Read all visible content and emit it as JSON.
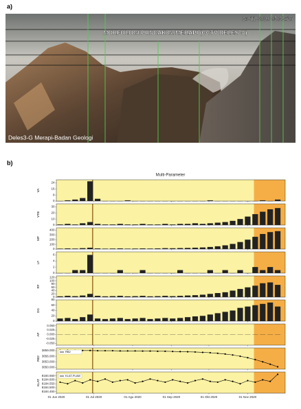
{
  "labels": {
    "a": "a)",
    "b": "b)"
  },
  "photo": {
    "timestamp": "26-11-2020 05:52:16",
    "title": "MORFOLOGI PUNCAK G. MERAPI (CCTV DELES 3 )",
    "caption": "Deles3-G Merapi-Badan Geologi"
  },
  "chart_data": {
    "type": "multi-panel",
    "title": "Multi-Parameter",
    "x": [
      3,
      9,
      15,
      21,
      27,
      33,
      39,
      45,
      51,
      57,
      63,
      69,
      75,
      81,
      87,
      93,
      99,
      105,
      111,
      117,
      123,
      129,
      135,
      141,
      147,
      153,
      159,
      165,
      171,
      177
    ],
    "xlim": [
      0,
      183
    ],
    "xticks": [
      {
        "value": 0,
        "label": "01 Jun 2020"
      },
      {
        "value": 30,
        "label": "01 Jul 2020"
      },
      {
        "value": 61,
        "label": "01 Agu 2020"
      },
      {
        "value": 92,
        "label": "01 Sep 2020"
      },
      {
        "value": 122,
        "label": "01 Okt 2020"
      },
      {
        "value": 153,
        "label": "01 Nov 2020"
      }
    ],
    "background": "#fbf2a4",
    "shade": {
      "from": 158,
      "to": 183,
      "color": "#f5ae45"
    },
    "event_line": {
      "x": 29,
      "color": "#a0762f"
    },
    "panels": [
      {
        "type": "bar",
        "label": "VA",
        "color": "#222222",
        "ylim": [
          0,
          28
        ],
        "yticks": [
          0,
          8,
          16,
          24
        ],
        "values": [
          0,
          1,
          2,
          4,
          26,
          3,
          0,
          0,
          0,
          1,
          0,
          0,
          0,
          0,
          0,
          0,
          0,
          0,
          0,
          0,
          1,
          0,
          0,
          0,
          0,
          0,
          0,
          1,
          0,
          2
        ]
      },
      {
        "type": "bar",
        "label": "VTB",
        "color": "#222222",
        "ylim": [
          0,
          35
        ],
        "yticks": [
          0,
          10,
          20,
          30
        ],
        "values": [
          1,
          2,
          1,
          3,
          5,
          2,
          1,
          1,
          2,
          1,
          1,
          2,
          1,
          1,
          2,
          1,
          2,
          2,
          3,
          2,
          3,
          4,
          5,
          7,
          10,
          14,
          18,
          22,
          26,
          28
        ]
      },
      {
        "type": "bar",
        "label": "MP",
        "color": "#222222",
        "ylim": [
          0,
          450
        ],
        "yticks": [
          0,
          100,
          200,
          300,
          400
        ],
        "values": [
          10,
          15,
          12,
          20,
          30,
          15,
          10,
          12,
          15,
          10,
          12,
          15,
          12,
          15,
          20,
          18,
          22,
          25,
          30,
          35,
          45,
          60,
          80,
          110,
          150,
          200,
          260,
          320,
          360,
          380
        ]
      },
      {
        "type": "bar",
        "label": "LF",
        "color": "#222222",
        "ylim": [
          0,
          7
        ],
        "yticks": [
          0,
          2,
          4,
          6
        ],
        "values": [
          0,
          0,
          1,
          1,
          6,
          0,
          0,
          0,
          1,
          0,
          0,
          1,
          0,
          0,
          0,
          0,
          1,
          0,
          0,
          0,
          1,
          0,
          1,
          0,
          1,
          0,
          2,
          1,
          2,
          1
        ]
      },
      {
        "type": "bar",
        "label": "RF",
        "color": "#222222",
        "ylim": [
          0,
          130
        ],
        "yticks": [
          0,
          20,
          40,
          60,
          80,
          100,
          120
        ],
        "values": [
          5,
          8,
          6,
          10,
          20,
          8,
          5,
          6,
          8,
          5,
          6,
          8,
          5,
          6,
          8,
          6,
          8,
          10,
          12,
          15,
          20,
          25,
          30,
          40,
          50,
          60,
          70,
          85,
          90,
          75
        ]
      },
      {
        "type": "bar",
        "label": "DG",
        "color": "#222222",
        "ylim": [
          0,
          80
        ],
        "yticks": [
          0,
          20,
          40,
          60,
          80
        ],
        "values": [
          10,
          12,
          8,
          15,
          25,
          10,
          8,
          10,
          12,
          8,
          10,
          12,
          8,
          10,
          12,
          10,
          12,
          15,
          18,
          20,
          25,
          30,
          35,
          40,
          50,
          55,
          60,
          65,
          70,
          55
        ]
      },
      {
        "type": "bar",
        "label": "AP",
        "color": "#222222",
        "ylim": [
          -0.06,
          0.06
        ],
        "yticks": [
          {
            "value": -0.05,
            "label": "-0.050"
          },
          {
            "value": -0.025,
            "label": "-0.025"
          },
          {
            "value": 0,
            "label": "0.000"
          },
          {
            "value": 0.025,
            "label": "0.025"
          },
          {
            "value": 0.05,
            "label": "0.050"
          }
        ],
        "values": [
          0,
          0,
          0,
          0,
          0,
          0,
          0,
          0,
          0,
          0,
          0,
          0,
          0,
          0,
          0,
          0,
          0,
          0,
          0,
          0,
          0,
          0,
          0,
          0,
          0,
          0,
          0,
          0,
          0,
          0
        ]
      },
      {
        "type": "line",
        "label": "RB2",
        "ylim": [
          3849,
          3860.5
        ],
        "yticks": [
          {
            "value": 3850,
            "label": "3850.000"
          },
          {
            "value": 3853,
            "label": "3853.000"
          },
          {
            "value": 3856,
            "label": "3856.000"
          },
          {
            "value": 3859,
            "label": "3859.000"
          }
        ],
        "series": [
          {
            "name": "RB2",
            "color": "#000000",
            "values": [
              3859.2,
              3859.2,
              3859.1,
              3859.1,
              3859.1,
              3859.0,
              3859.0,
              3859.0,
              3858.9,
              3858.9,
              3858.9,
              3858.8,
              3858.8,
              3858.7,
              3858.7,
              3858.6,
              3858.5,
              3858.4,
              3858.3,
              3858.1,
              3857.9,
              3857.6,
              3857.2,
              3856.7,
              3856.0,
              3855.2,
              3854.2,
              3853.0,
              3851.7,
              3850.3
            ]
          }
        ]
      },
      {
        "type": "line",
        "label": "KLAT",
        "ylim": [
          8184.43,
          8184.7
        ],
        "yticks": [
          {
            "value": 8184.45,
            "label": "8184.450"
          },
          {
            "value": 8184.5,
            "label": "8184.500"
          },
          {
            "value": 8184.55,
            "label": "8184.550"
          },
          {
            "value": 8184.6,
            "label": "8184.600"
          },
          {
            "value": 8184.65,
            "label": "8184.650"
          }
        ],
        "series": [
          {
            "name": "KLAT-PLAW",
            "color": "#000000",
            "values": [
              8184.57,
              8184.55,
              8184.59,
              8184.56,
              8184.6,
              8184.58,
              8184.61,
              8184.57,
              8184.59,
              8184.6,
              8184.56,
              8184.58,
              8184.61,
              8184.59,
              8184.57,
              8184.6,
              8184.58,
              8184.56,
              8184.59,
              8184.61,
              8184.58,
              8184.57,
              8184.6,
              8184.58,
              8184.55,
              8184.59,
              8184.57,
              8184.6,
              8184.58,
              8184.67
            ]
          }
        ]
      }
    ]
  }
}
